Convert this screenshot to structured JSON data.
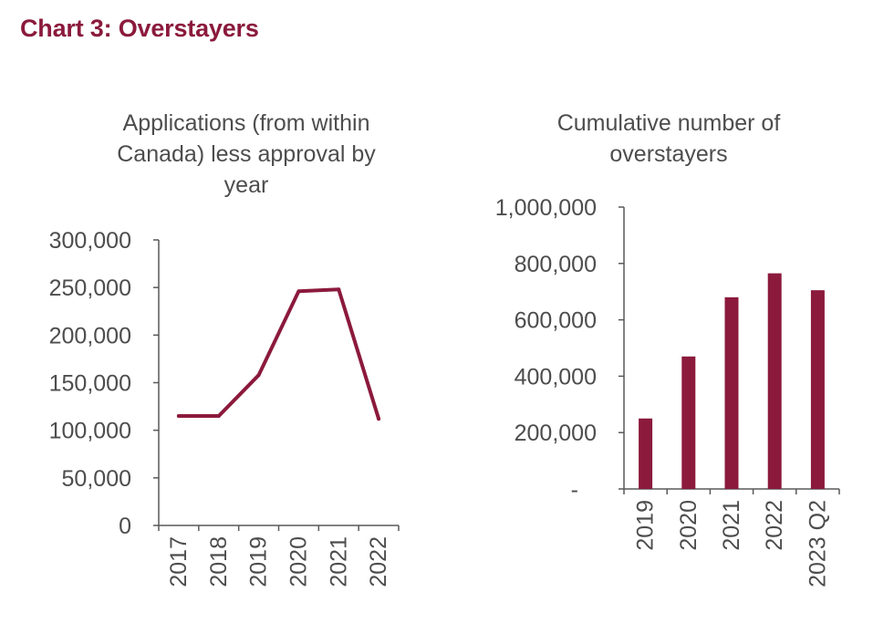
{
  "page": {
    "title": "Chart 3: Overstayers"
  },
  "colors": {
    "accent": "#8b1a3c",
    "axis": "#595959",
    "text": "#4d4d4d"
  },
  "chart_data": [
    {
      "type": "line",
      "title_lines": [
        "Applications (from within",
        "Canada) less approval by",
        "year"
      ],
      "categories": [
        "2017",
        "2018",
        "2019",
        "2020",
        "2021",
        "2022"
      ],
      "series": [
        {
          "values": [
            115000,
            115000,
            158000,
            246000,
            248000,
            112000
          ]
        }
      ],
      "y_ticks": [
        "0",
        "50,000",
        "100,000",
        "150,000",
        "200,000",
        "250,000",
        "300,000"
      ],
      "ylim": [
        0,
        300000
      ],
      "grid": false
    },
    {
      "type": "bar",
      "title_lines": [
        "Cumulative number of",
        "overstayers"
      ],
      "categories": [
        "2019",
        "2020",
        "2021",
        "2022",
        "2023 Q2"
      ],
      "series": [
        {
          "values": [
            250000,
            470000,
            680000,
            765000,
            705000
          ]
        }
      ],
      "y_ticks": [
        "-",
        "200,000",
        "400,000",
        "600,000",
        "800,000",
        "1,000,000"
      ],
      "ylim": [
        0,
        1000000
      ],
      "grid": false
    }
  ]
}
